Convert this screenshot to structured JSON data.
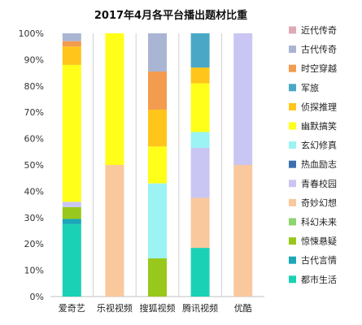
{
  "chart_data": {
    "type": "bar",
    "stacked": true,
    "normalized": true,
    "title": "2017年4月各平台播出题材比重",
    "categories": [
      "爱奇艺",
      "乐视视频",
      "搜狐视频",
      "腾讯视频",
      "优酷"
    ],
    "ylim": [
      0,
      100
    ],
    "yticks": [
      "0%",
      "10%",
      "20%",
      "30%",
      "40%",
      "50%",
      "60%",
      "70%",
      "80%",
      "90%",
      "100%"
    ],
    "grid": false,
    "legend_position": "right",
    "series": [
      {
        "name": "都市生活",
        "color": "#1BD1B5",
        "values": [
          27.5,
          0,
          0,
          18.5,
          0
        ]
      },
      {
        "name": "古代言情",
        "color": "#1AA7B8",
        "values": [
          2,
          0,
          0,
          0,
          0
        ]
      },
      {
        "name": "惊悚悬疑",
        "color": "#98C81B",
        "values": [
          4.5,
          0,
          14.5,
          0,
          0
        ]
      },
      {
        "name": "科幻未来",
        "color": "#8ED46E",
        "values": [
          0,
          0,
          0,
          0,
          0
        ]
      },
      {
        "name": "奇妙幻想",
        "color": "#F9C89D",
        "values": [
          0,
          50,
          0,
          19,
          50
        ]
      },
      {
        "name": "青春校园",
        "color": "#C9C6F3",
        "values": [
          2,
          0,
          0,
          19,
          50
        ]
      },
      {
        "name": "热血励志",
        "color": "#3D6FB0",
        "values": [
          0,
          0,
          0,
          0,
          0
        ]
      },
      {
        "name": "玄幻修真",
        "color": "#9BF3F3",
        "values": [
          0,
          0,
          28.5,
          6,
          0
        ]
      },
      {
        "name": "幽默搞笑",
        "color": "#FFFF1A",
        "values": [
          52,
          50,
          14,
          18.5,
          0
        ]
      },
      {
        "name": "侦探推理",
        "color": "#FFC51A",
        "values": [
          7,
          0,
          14,
          6,
          0
        ]
      },
      {
        "name": "军旅",
        "color": "#4AA8C6",
        "values": [
          0,
          0,
          0,
          13,
          0
        ]
      },
      {
        "name": "时空穿越",
        "color": "#F39B4F",
        "values": [
          2,
          0,
          14.5,
          0,
          0
        ]
      },
      {
        "name": "古代传奇",
        "color": "#A9B5D2",
        "values": [
          3,
          0,
          14.5,
          0,
          0
        ]
      },
      {
        "name": "近代传奇",
        "color": "#E0A9B6",
        "values": [
          0,
          0,
          0,
          0,
          0
        ]
      }
    ]
  }
}
